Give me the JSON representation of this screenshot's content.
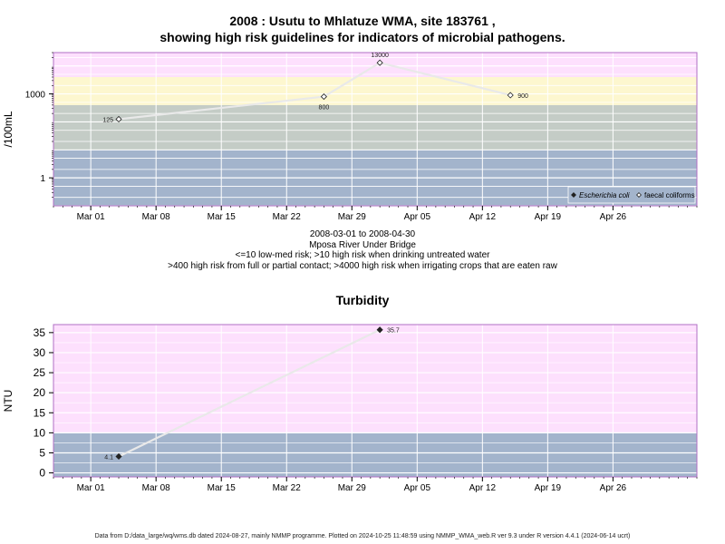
{
  "chart_data": [
    {
      "type": "line",
      "title_line1": "2008 : Usutu to Mhlatuze WMA, site 183761 ,",
      "title_line2": "showing high risk guidelines for indicators of microbial pathogens.",
      "ylabel": "/100mL",
      "yscale": "log",
      "ylim": [
        0.1,
        30000
      ],
      "yticks": [
        {
          "value": 1,
          "label": "1"
        },
        {
          "value": 1000,
          "label": "1000"
        }
      ],
      "xlim": [
        "2008-02-26",
        "2008-05-05"
      ],
      "xticks": [
        {
          "date": "2008-03-01",
          "label": "Mar 01"
        },
        {
          "date": "2008-03-08",
          "label": "Mar 08"
        },
        {
          "date": "2008-03-15",
          "label": "Mar 15"
        },
        {
          "date": "2008-03-22",
          "label": "Mar 22"
        },
        {
          "date": "2008-03-29",
          "label": "Mar 29"
        },
        {
          "date": "2008-04-05",
          "label": "Apr 05"
        },
        {
          "date": "2008-04-12",
          "label": "Apr 12"
        },
        {
          "date": "2008-04-19",
          "label": "Apr 19"
        },
        {
          "date": "2008-04-26",
          "label": "Apr 26"
        }
      ],
      "bands": [
        {
          "from": 0.1,
          "to": 10,
          "color": "#a3b4cc"
        },
        {
          "from": 10,
          "to": 400,
          "color": "#c4ccc6"
        },
        {
          "from": 400,
          "to": 4000,
          "color": "#fdf7cf"
        },
        {
          "from": 4000,
          "to": 30000,
          "color": "#fde0fd"
        }
      ],
      "grid": true,
      "series": [
        {
          "name": "faecal coliforms",
          "marker": "open-diamond",
          "points": [
            {
              "date": "2008-03-04",
              "value": 125,
              "label": "125"
            },
            {
              "date": "2008-03-26",
              "value": 800,
              "label": "800"
            },
            {
              "date": "2008-04-01",
              "value": 13000,
              "label": "13000"
            },
            {
              "date": "2008-04-15",
              "value": 900,
              "label": "900"
            }
          ]
        }
      ],
      "legend": {
        "placement": "bottom-right",
        "entries": [
          {
            "label": "Escherichia coli",
            "marker": "filled-diamond",
            "italic": true
          },
          {
            "label": "faecal coliforms",
            "marker": "open-diamond",
            "italic": false
          }
        ]
      }
    },
    {
      "type": "line",
      "title": "Turbidity",
      "ylabel": "NTU",
      "ylim": [
        -1,
        37
      ],
      "yticks": [
        0,
        5,
        10,
        15,
        20,
        25,
        30,
        35
      ],
      "xlim": [
        "2008-02-26",
        "2008-05-05"
      ],
      "xticks": [
        {
          "date": "2008-03-01",
          "label": "Mar 01"
        },
        {
          "date": "2008-03-08",
          "label": "Mar 08"
        },
        {
          "date": "2008-03-15",
          "label": "Mar 15"
        },
        {
          "date": "2008-03-22",
          "label": "Mar 22"
        },
        {
          "date": "2008-03-29",
          "label": "Mar 29"
        },
        {
          "date": "2008-04-05",
          "label": "Apr 05"
        },
        {
          "date": "2008-04-12",
          "label": "Apr 12"
        },
        {
          "date": "2008-04-19",
          "label": "Apr 19"
        },
        {
          "date": "2008-04-26",
          "label": "Apr 26"
        }
      ],
      "bands": [
        {
          "from": -1,
          "to": 10,
          "color": "#a3b4cc"
        },
        {
          "from": 10,
          "to": 37,
          "color": "#fde0fd"
        }
      ],
      "grid": true,
      "series": [
        {
          "marker": "filled-diamond",
          "points": [
            {
              "date": "2008-03-04",
              "value": 4.1,
              "label": "4.1"
            },
            {
              "date": "2008-04-01",
              "value": 35.7,
              "label": "35.7"
            }
          ]
        }
      ]
    }
  ],
  "info": {
    "date_range": "2008-03-01 to 2008-04-30",
    "site_name": "Mposa River Under Bridge",
    "guideline_1": "<=10 low-med risk; >10 high risk when drinking untreated water",
    "guideline_2": ">400 high risk from full or partial contact; >4000 high risk when irrigating crops that are eaten raw"
  },
  "footer": "Data from D:/data_large/wq/wms.db dated 2024-08-27, mainly NMMP programme. Plotted on 2024-10-25 11:48:59 using NMMP_WMA_web.R ver 9.3 under R version 4.4.1 (2024-06-14 ucrt)"
}
